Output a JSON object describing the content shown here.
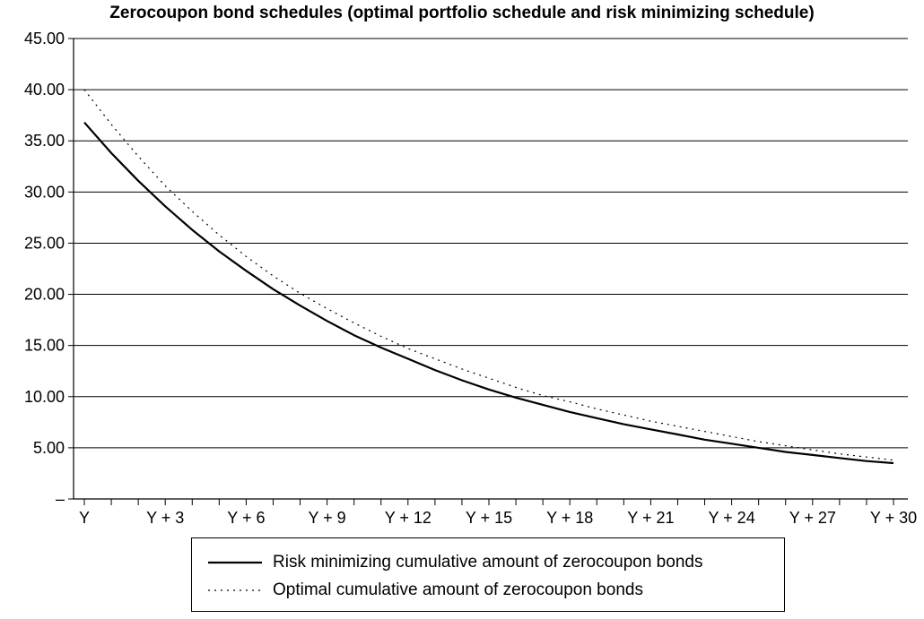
{
  "chart_data": {
    "type": "line",
    "title": "Zerocoupon bond schedules (optimal portfolio schedule and risk minimizing schedule)",
    "xlabel": "",
    "ylabel": "",
    "ylim": [
      0,
      45
    ],
    "y_ticks": [
      "–",
      "5.00",
      "10.00",
      "15.00",
      "20.00",
      "25.00",
      "30.00",
      "35.00",
      "40.00",
      "45.00"
    ],
    "y_tick_values": [
      0,
      5,
      10,
      15,
      20,
      25,
      30,
      35,
      40,
      45
    ],
    "x_ticks": [
      "Y",
      "Y + 3",
      "Y + 6",
      "Y + 9",
      "Y + 12",
      "Y + 15",
      "Y + 18",
      "Y + 21",
      "Y + 24",
      "Y + 27",
      "Y + 30"
    ],
    "x_tick_values": [
      0,
      3,
      6,
      9,
      12,
      15,
      18,
      21,
      24,
      27,
      30
    ],
    "grid": true,
    "legend_position": "bottom",
    "series": [
      {
        "name": "Risk minimizing cumulative amount of zerocoupon bonds",
        "style": "solid",
        "color": "#000000",
        "x": [
          0,
          1,
          2,
          3,
          4,
          5,
          6,
          7,
          8,
          9,
          10,
          11,
          12,
          13,
          14,
          15,
          16,
          17,
          18,
          19,
          20,
          21,
          22,
          23,
          24,
          25,
          26,
          27,
          28,
          29,
          30
        ],
        "values": [
          36.8,
          33.8,
          31.1,
          28.6,
          26.3,
          24.2,
          22.3,
          20.5,
          18.9,
          17.4,
          16.0,
          14.8,
          13.7,
          12.6,
          11.6,
          10.7,
          9.9,
          9.2,
          8.5,
          7.9,
          7.3,
          6.8,
          6.3,
          5.8,
          5.4,
          5.0,
          4.6,
          4.3,
          4.0,
          3.7,
          3.5
        ]
      },
      {
        "name": "Optimal cumulative amount of zerocoupon bonds",
        "style": "dotted",
        "color": "#000000",
        "x": [
          0,
          1,
          2,
          3,
          4,
          5,
          6,
          7,
          8,
          9,
          10,
          11,
          12,
          13,
          14,
          15,
          16,
          17,
          18,
          19,
          20,
          21,
          22,
          23,
          24,
          25,
          26,
          27,
          28,
          29,
          30
        ],
        "values": [
          40.0,
          36.6,
          33.5,
          30.6,
          28.1,
          25.8,
          23.7,
          21.8,
          20.1,
          18.6,
          17.2,
          15.9,
          14.7,
          13.7,
          12.7,
          11.8,
          10.9,
          10.1,
          9.5,
          8.8,
          8.2,
          7.6,
          7.1,
          6.6,
          6.1,
          5.6,
          5.2,
          4.8,
          4.4,
          4.1,
          3.8
        ]
      }
    ]
  }
}
